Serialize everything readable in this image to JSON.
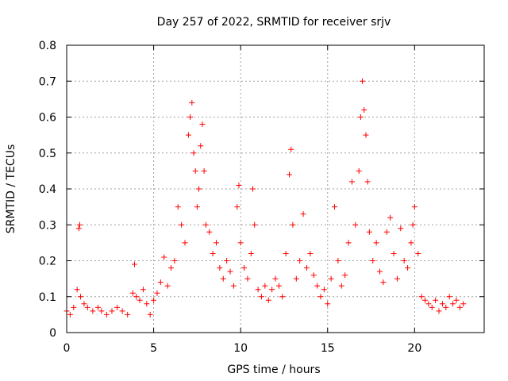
{
  "chart_data": {
    "type": "scatter",
    "title": "Day 257 of 2022, SRMTID for receiver srjv",
    "xlabel": "GPS time / hours",
    "ylabel": "SRMTID / TECUs",
    "xlim": [
      0,
      24
    ],
    "ylim": [
      0,
      0.8
    ],
    "x_ticks": [
      0,
      5,
      10,
      15,
      20
    ],
    "x_tick_labels": [
      "0",
      "5",
      "10",
      "15",
      "20"
    ],
    "y_ticks": [
      0,
      0.1,
      0.2,
      0.3,
      0.4,
      0.5,
      0.6,
      0.7,
      0.8
    ],
    "y_tick_labels": [
      "0",
      "0.1",
      "0.2",
      "0.3",
      "0.4",
      "0.5",
      "0.6",
      "0.7",
      "0.8"
    ],
    "grid": true,
    "marker": "+",
    "color": "#ff0000",
    "series": [
      {
        "name": "srjv",
        "x": [
          0.0,
          0.2,
          0.4,
          0.6,
          0.7,
          0.75,
          0.8,
          1.0,
          1.2,
          1.5,
          1.8,
          2.0,
          2.3,
          2.6,
          2.9,
          3.2,
          3.5,
          3.8,
          3.9,
          4.0,
          4.2,
          4.4,
          4.6,
          4.8,
          5.0,
          5.2,
          5.4,
          5.6,
          5.8,
          6.0,
          6.2,
          6.4,
          6.6,
          6.8,
          7.0,
          7.1,
          7.2,
          7.3,
          7.4,
          7.5,
          7.6,
          7.7,
          7.8,
          7.9,
          8.0,
          8.2,
          8.4,
          8.6,
          8.8,
          9.0,
          9.2,
          9.4,
          9.6,
          9.8,
          9.9,
          10.0,
          10.2,
          10.4,
          10.6,
          10.7,
          10.8,
          11.0,
          11.2,
          11.4,
          11.6,
          11.8,
          12.0,
          12.2,
          12.4,
          12.6,
          12.8,
          12.9,
          13.0,
          13.2,
          13.4,
          13.6,
          13.8,
          14.0,
          14.2,
          14.4,
          14.6,
          14.8,
          15.0,
          15.2,
          15.4,
          15.6,
          15.8,
          16.0,
          16.2,
          16.4,
          16.6,
          16.8,
          16.9,
          17.0,
          17.1,
          17.2,
          17.3,
          17.4,
          17.6,
          17.8,
          18.0,
          18.2,
          18.4,
          18.6,
          18.8,
          19.0,
          19.2,
          19.4,
          19.6,
          19.8,
          19.9,
          20.0,
          20.2,
          20.4,
          20.6,
          20.8,
          21.0,
          21.2,
          21.4,
          21.6,
          21.8,
          22.0,
          22.2,
          22.4,
          22.6,
          22.8
        ],
        "y": [
          0.06,
          0.05,
          0.07,
          0.12,
          0.29,
          0.3,
          0.1,
          0.08,
          0.07,
          0.06,
          0.07,
          0.06,
          0.05,
          0.06,
          0.07,
          0.06,
          0.05,
          0.11,
          0.19,
          0.1,
          0.09,
          0.12,
          0.08,
          0.05,
          0.09,
          0.11,
          0.14,
          0.21,
          0.13,
          0.18,
          0.2,
          0.35,
          0.3,
          0.25,
          0.55,
          0.6,
          0.64,
          0.5,
          0.45,
          0.35,
          0.4,
          0.52,
          0.58,
          0.45,
          0.3,
          0.28,
          0.22,
          0.25,
          0.18,
          0.15,
          0.2,
          0.17,
          0.13,
          0.35,
          0.41,
          0.25,
          0.18,
          0.15,
          0.22,
          0.4,
          0.3,
          0.12,
          0.1,
          0.13,
          0.09,
          0.12,
          0.15,
          0.13,
          0.1,
          0.22,
          0.44,
          0.51,
          0.3,
          0.15,
          0.2,
          0.33,
          0.18,
          0.22,
          0.16,
          0.13,
          0.1,
          0.12,
          0.08,
          0.15,
          0.35,
          0.2,
          0.13,
          0.16,
          0.25,
          0.42,
          0.3,
          0.45,
          0.6,
          0.7,
          0.62,
          0.55,
          0.42,
          0.28,
          0.2,
          0.25,
          0.17,
          0.14,
          0.28,
          0.32,
          0.22,
          0.15,
          0.29,
          0.2,
          0.18,
          0.25,
          0.3,
          0.35,
          0.22,
          0.1,
          0.09,
          0.08,
          0.07,
          0.09,
          0.06,
          0.08,
          0.07,
          0.1,
          0.08,
          0.09,
          0.07,
          0.08
        ]
      }
    ]
  }
}
